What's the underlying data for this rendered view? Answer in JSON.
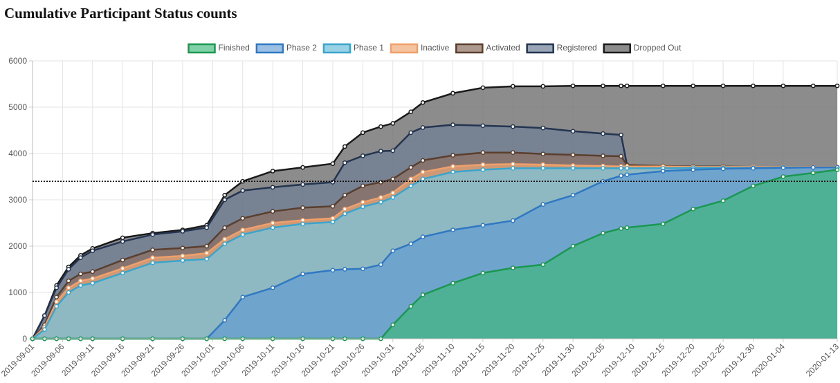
{
  "chart_data": {
    "type": "area",
    "title": "Cumulative Participant Status counts",
    "x": [
      "2019-09-01",
      "2019-09-03",
      "2019-09-05",
      "2019-09-07",
      "2019-09-09",
      "2019-09-11",
      "2019-09-16",
      "2019-09-21",
      "2019-09-26",
      "2019-09-30",
      "2019-10-03",
      "2019-10-06",
      "2019-10-11",
      "2019-10-16",
      "2019-10-21",
      "2019-10-23",
      "2019-10-26",
      "2019-10-29",
      "2019-10-31",
      "2019-11-03",
      "2019-11-05",
      "2019-11-10",
      "2019-11-15",
      "2019-11-20",
      "2019-11-25",
      "2019-11-30",
      "2019-12-05",
      "2019-12-08",
      "2019-12-09",
      "2019-12-15",
      "2019-12-20",
      "2019-12-25",
      "2019-12-30",
      "2020-01-04",
      "2020-01-09",
      "2020-01-13"
    ],
    "series": [
      {
        "name": "Finished",
        "color": "#1a9850",
        "fill": "rgba(60,185,120,0.65)",
        "values": [
          0,
          0,
          0,
          0,
          0,
          0,
          0,
          0,
          0,
          0,
          0,
          0,
          0,
          0,
          0,
          0,
          0,
          0,
          300,
          700,
          950,
          1200,
          1420,
          1530,
          1600,
          2000,
          2280,
          2380,
          2400,
          2480,
          2800,
          2980,
          3300,
          3500,
          3580,
          3650
        ]
      },
      {
        "name": "Phase 2",
        "color": "#2f78c4",
        "fill": "rgba(90,150,210,0.6)",
        "values": [
          0,
          0,
          0,
          0,
          0,
          0,
          0,
          0,
          0,
          0,
          400,
          900,
          1100,
          1400,
          1480,
          1500,
          1510,
          1600,
          1900,
          2050,
          2200,
          2350,
          2450,
          2550,
          2900,
          3100,
          3400,
          3520,
          3540,
          3620,
          3650,
          3670,
          3680,
          3690,
          3700,
          3700
        ]
      },
      {
        "name": "Phase 1",
        "color": "#3aa5cc",
        "fill": "rgba(120,195,220,0.75)",
        "values": [
          0,
          200,
          700,
          1000,
          1150,
          1200,
          1420,
          1640,
          1690,
          1720,
          2050,
          2250,
          2400,
          2480,
          2520,
          2700,
          2850,
          2950,
          3050,
          3300,
          3450,
          3600,
          3650,
          3680,
          3680,
          3680,
          3680,
          3680,
          3680,
          3680,
          3690,
          3690,
          3690,
          3700,
          3700,
          3700
        ]
      },
      {
        "name": "Inactive",
        "color": "#f0a06a",
        "fill": "rgba(240,170,120,0.7)",
        "values": [
          0,
          250,
          800,
          1100,
          1250,
          1300,
          1520,
          1750,
          1790,
          1850,
          2150,
          2350,
          2500,
          2560,
          2600,
          2800,
          2950,
          3050,
          3150,
          3450,
          3600,
          3720,
          3760,
          3770,
          3760,
          3740,
          3730,
          3720,
          3720,
          3720,
          3710,
          3710,
          3710,
          3710,
          3710,
          3710
        ]
      },
      {
        "name": "Activated",
        "color": "#5a3e2e",
        "fill": "rgba(140,110,95,0.7)",
        "values": [
          0,
          300,
          900,
          1250,
          1400,
          1450,
          1700,
          1920,
          1960,
          2000,
          2400,
          2600,
          2750,
          2830,
          2860,
          3100,
          3300,
          3380,
          3450,
          3700,
          3850,
          3960,
          4020,
          4020,
          3990,
          3970,
          3950,
          3940,
          3750,
          3730,
          3720,
          3720,
          3710,
          3710,
          3710,
          3710
        ]
      },
      {
        "name": "Registered",
        "color": "#22344f",
        "fill": "rgba(110,125,150,0.7)",
        "values": [
          0,
          500,
          1100,
          1500,
          1750,
          1900,
          2100,
          2250,
          2320,
          2400,
          3000,
          3200,
          3270,
          3330,
          3380,
          3800,
          3950,
          4050,
          4060,
          4450,
          4560,
          4620,
          4600,
          4580,
          4550,
          4480,
          4430,
          4400,
          3750,
          null,
          null,
          null,
          null,
          null,
          null,
          null
        ]
      },
      {
        "name": "Dropped Out",
        "color": "#1a1a1a",
        "fill": "rgba(120,120,120,0.85)",
        "values": [
          0,
          500,
          1150,
          1550,
          1800,
          1950,
          2180,
          2280,
          2350,
          2450,
          3100,
          3400,
          3620,
          3700,
          3780,
          4150,
          4450,
          4580,
          4650,
          4900,
          5100,
          5300,
          5420,
          5450,
          5450,
          5460,
          5460,
          5460,
          5460,
          5460,
          5460,
          5460,
          5460,
          5460,
          5460,
          5460
        ]
      }
    ],
    "reference_line": 3400,
    "ylim": [
      0,
      6000
    ],
    "yticks": [
      0,
      1000,
      2000,
      3000,
      4000,
      5000,
      6000
    ],
    "xlim": [
      "2019-09-01",
      "2020-01-13"
    ],
    "xticks": [
      "2019-09-01",
      "2019-09-06",
      "2019-09-11",
      "2019-09-16",
      "2019-09-21",
      "2019-09-26",
      "2019-10-01",
      "2019-10-06",
      "2019-10-11",
      "2019-10-16",
      "2019-10-21",
      "2019-10-26",
      "2019-10-31",
      "2019-11-05",
      "2019-11-10",
      "2019-11-15",
      "2019-11-20",
      "2019-11-25",
      "2019-11-30",
      "2019-12-05",
      "2019-12-10",
      "2019-12-15",
      "2019-12-20",
      "2019-12-25",
      "2019-12-30",
      "2020-01-04",
      "2020-01-13"
    ],
    "grid": true,
    "legend": "top"
  }
}
